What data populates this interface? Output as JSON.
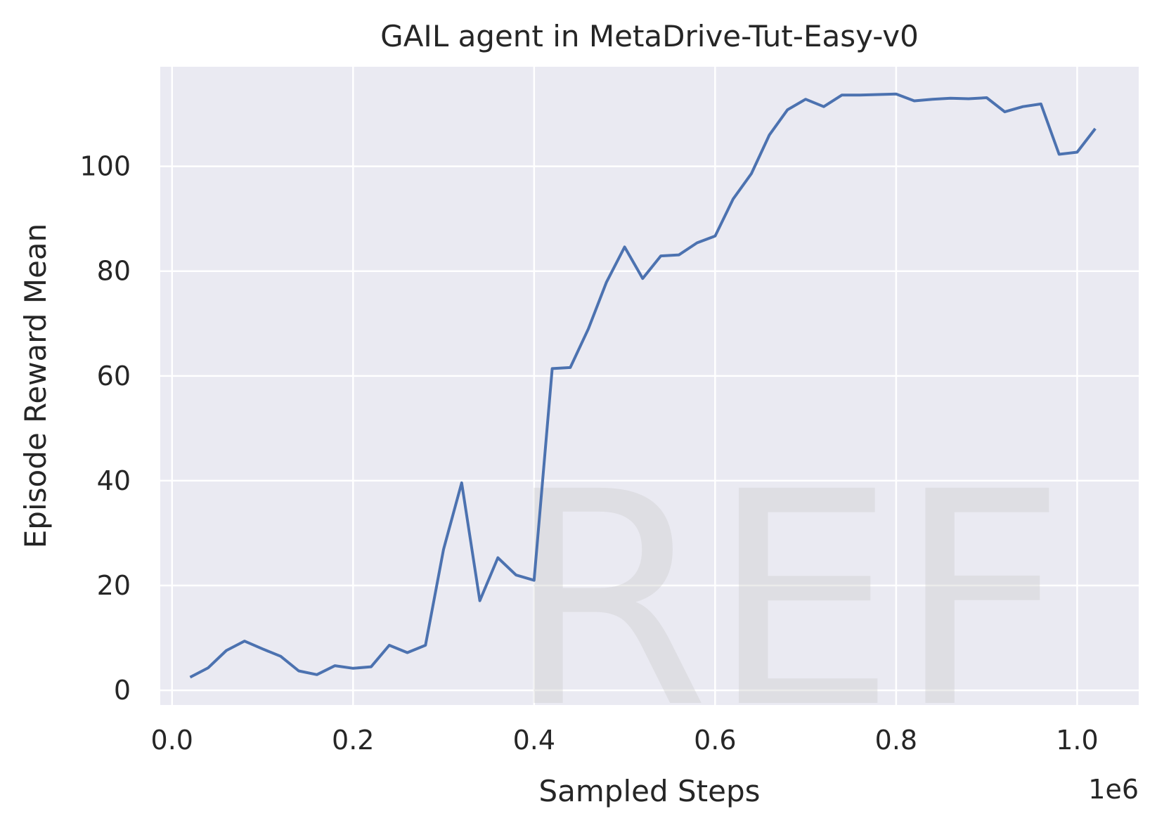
{
  "chart_data": {
    "type": "line",
    "title": "GAIL agent in MetaDrive-Tut-Easy-v0",
    "xlabel": "Sampled Steps",
    "ylabel": "Episode Reward Mean",
    "x_offset_label": "1e6",
    "xlim": [
      -0.013,
      1.068
    ],
    "ylim": [
      -2.8,
      119
    ],
    "xticks": [
      0.0,
      0.2,
      0.4,
      0.6,
      0.8,
      1.0
    ],
    "xtick_labels": [
      "0.0",
      "0.2",
      "0.4",
      "0.6",
      "0.8",
      "1.0"
    ],
    "yticks": [
      0,
      20,
      40,
      60,
      80,
      100
    ],
    "ytick_labels": [
      "0",
      "20",
      "40",
      "60",
      "80",
      "100"
    ],
    "grid": true,
    "background": "#eaeaf2",
    "grid_color": "#ffffff",
    "line_color": "#4c72b0",
    "watermark": "REF",
    "series": [
      {
        "x": [
          0.02,
          0.04,
          0.06,
          0.08,
          0.1,
          0.12,
          0.14,
          0.16,
          0.18,
          0.2,
          0.22,
          0.24,
          0.26,
          0.28,
          0.3,
          0.32,
          0.34,
          0.36,
          0.38,
          0.4,
          0.42,
          0.44,
          0.46,
          0.48,
          0.5,
          0.52,
          0.54,
          0.56,
          0.58,
          0.6,
          0.62,
          0.64,
          0.66,
          0.68,
          0.7,
          0.72,
          0.74,
          0.76,
          0.78,
          0.8,
          0.82,
          0.84,
          0.86,
          0.88,
          0.9,
          0.92,
          0.94,
          0.96,
          0.98,
          1.0,
          1.02
        ],
        "y": [
          2.5,
          4.3,
          7.6,
          9.4,
          7.9,
          6.5,
          3.7,
          3.0,
          4.7,
          4.2,
          4.5,
          8.6,
          7.2,
          8.6,
          26.9,
          39.6,
          17.1,
          25.3,
          22.0,
          21.0,
          61.4,
          61.6,
          69.0,
          77.9,
          84.6,
          78.6,
          82.9,
          83.1,
          85.4,
          86.7,
          93.8,
          98.6,
          106.0,
          110.8,
          112.8,
          111.4,
          113.6,
          113.6,
          113.7,
          113.8,
          112.5,
          112.8,
          113.0,
          112.9,
          113.1,
          110.4,
          111.4,
          111.9,
          102.3,
          102.7,
          107.2
        ]
      }
    ]
  }
}
